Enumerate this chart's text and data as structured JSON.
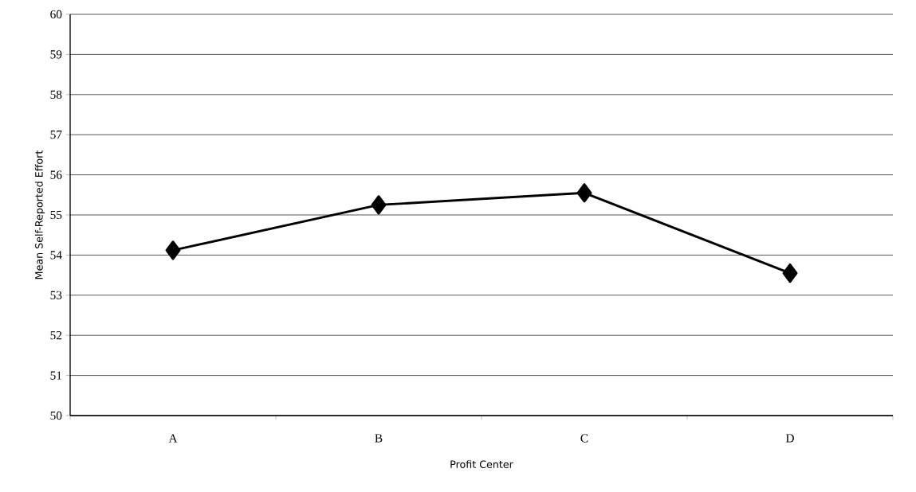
{
  "chart_data": {
    "type": "line",
    "xlabel": "Profit Center",
    "ylabel": "Mean Self-Reported Effort",
    "categories": [
      "A",
      "B",
      "C",
      "D"
    ],
    "series": [
      {
        "color": "#000000",
        "values": [
          54.12,
          55.25,
          55.55,
          53.55
        ]
      }
    ],
    "ylim": [
      50,
      60
    ],
    "yticks": [
      50,
      51,
      52,
      53,
      54,
      55,
      56,
      57,
      58,
      59,
      60
    ],
    "grid": "y",
    "marker": "diamond",
    "line_style": "solid"
  }
}
